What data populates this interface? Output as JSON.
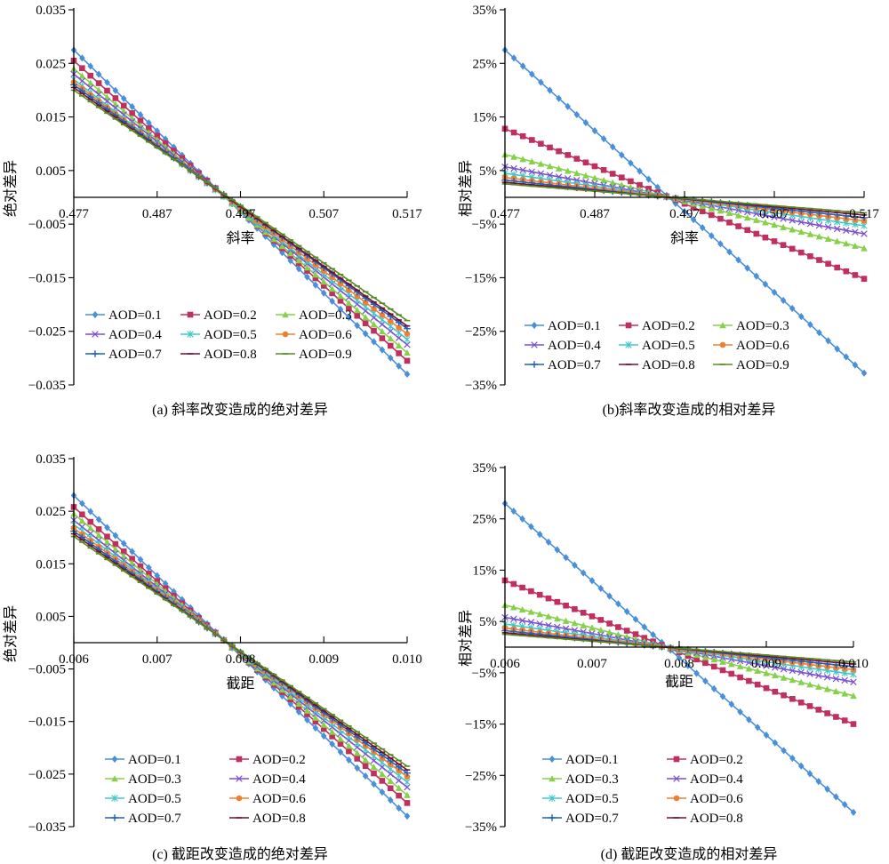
{
  "chart_data": [
    {
      "id": "a",
      "type": "line",
      "caption": "(a) 斜率改变造成的绝对差异",
      "xlabel": "斜率",
      "ylabel": "绝对差异",
      "xlim": [
        0.477,
        0.517
      ],
      "ylim": [
        -0.035,
        0.035
      ],
      "xticks": [
        "0.477",
        "0.487",
        "0.497",
        "0.507",
        "0.517"
      ],
      "yticks": [
        "0.035",
        "0.025",
        "0.015",
        "0.005",
        "−0.005",
        "−0.015",
        "−0.025",
        "−0.035"
      ],
      "grid": false,
      "legend_position": "bottom-left",
      "legend_columns": 3,
      "x_start": 0.477,
      "x_end": 0.517,
      "x_step": 0.001,
      "series": [
        {
          "name": "AOD=0.1",
          "color": "#4a8fd9",
          "marker": "diamond",
          "y_start": 0.0275,
          "y_end": -0.033
        },
        {
          "name": "AOD=0.2",
          "color": "#c0305e",
          "marker": "square",
          "y_start": 0.0255,
          "y_end": -0.0305
        },
        {
          "name": "AOD=0.3",
          "color": "#86d04a",
          "marker": "triangle",
          "y_start": 0.024,
          "y_end": -0.029
        },
        {
          "name": "AOD=0.4",
          "color": "#7a4fd0",
          "marker": "x",
          "y_start": 0.023,
          "y_end": -0.0275
        },
        {
          "name": "AOD=0.5",
          "color": "#40c8c8",
          "marker": "star",
          "y_start": 0.022,
          "y_end": -0.0265
        },
        {
          "name": "AOD=0.6",
          "color": "#f08030",
          "marker": "circle",
          "y_start": 0.0215,
          "y_end": -0.0255
        },
        {
          "name": "AOD=0.7",
          "color": "#2060b8",
          "marker": "plus",
          "y_start": 0.021,
          "y_end": -0.0245
        },
        {
          "name": "AOD=0.8",
          "color": "#701030",
          "marker": "dash",
          "y_start": 0.0205,
          "y_end": -0.024
        },
        {
          "name": "AOD=0.9",
          "color": "#5a8a20",
          "marker": "dash",
          "y_start": 0.02,
          "y_end": -0.023
        }
      ]
    },
    {
      "id": "b",
      "type": "line",
      "caption": "(b)斜率改变造成的相对差异",
      "xlabel": "斜率",
      "ylabel": "相对差异",
      "xlim": [
        0.477,
        0.517
      ],
      "ylim": [
        -35,
        35
      ],
      "y_unit": "%",
      "xticks": [
        "0.477",
        "0.487",
        "0.497",
        "0.507",
        "0.517"
      ],
      "yticks": [
        "35%",
        "25%",
        "15%",
        "5%",
        "−5%",
        "−15%",
        "−25%",
        "−35%"
      ],
      "grid": false,
      "legend_position": "bottom-left",
      "legend_columns": 3,
      "x_start": 0.477,
      "x_end": 0.517,
      "x_step": 0.001,
      "series": [
        {
          "name": "AOD=0.1",
          "color": "#4a8fd9",
          "marker": "diamond",
          "y_start": 27.5,
          "y_end": -32.8
        },
        {
          "name": "AOD=0.2",
          "color": "#c0305e",
          "marker": "square",
          "y_start": 12.8,
          "y_end": -15.2
        },
        {
          "name": "AOD=0.3",
          "color": "#86d04a",
          "marker": "triangle",
          "y_start": 8.0,
          "y_end": -9.5
        },
        {
          "name": "AOD=0.4",
          "color": "#7a4fd0",
          "marker": "x",
          "y_start": 5.7,
          "y_end": -6.8
        },
        {
          "name": "AOD=0.5",
          "color": "#40c8c8",
          "marker": "star",
          "y_start": 4.5,
          "y_end": -5.3
        },
        {
          "name": "AOD=0.6",
          "color": "#f08030",
          "marker": "circle",
          "y_start": 3.7,
          "y_end": -4.4
        },
        {
          "name": "AOD=0.7",
          "color": "#2060b8",
          "marker": "plus",
          "y_start": 3.2,
          "y_end": -3.8
        },
        {
          "name": "AOD=0.8",
          "color": "#701030",
          "marker": "dash",
          "y_start": 2.8,
          "y_end": -3.3
        },
        {
          "name": "AOD=0.9",
          "color": "#5a8a20",
          "marker": "dash",
          "y_start": 2.5,
          "y_end": -2.9
        }
      ]
    },
    {
      "id": "c",
      "type": "line",
      "caption": "(c) 截距改变造成的绝对差异",
      "xlabel": "截距",
      "ylabel": "绝对差异",
      "xlim": [
        0.006,
        0.01
      ],
      "ylim": [
        -0.035,
        0.035
      ],
      "xticks": [
        "0.006",
        "0.007",
        "0.008",
        "0.009",
        "0.010"
      ],
      "yticks": [
        "0.035",
        "0.025",
        "0.015",
        "0.005",
        "−0.005",
        "−0.015",
        "−0.025",
        "−0.035"
      ],
      "grid": false,
      "legend_position": "bottom-left",
      "legend_columns": 2,
      "x_start": 0.006,
      "x_end": 0.01,
      "x_step": 0.0001,
      "series": [
        {
          "name": "AOD=0.1",
          "color": "#4a8fd9",
          "marker": "diamond",
          "y_start": 0.028,
          "y_end": -0.033
        },
        {
          "name": "AOD=0.2",
          "color": "#c0305e",
          "marker": "square",
          "y_start": 0.0258,
          "y_end": -0.0305
        },
        {
          "name": "AOD=0.3",
          "color": "#86d04a",
          "marker": "triangle",
          "y_start": 0.0245,
          "y_end": -0.029
        },
        {
          "name": "AOD=0.4",
          "color": "#7a4fd0",
          "marker": "x",
          "y_start": 0.0233,
          "y_end": -0.0275
        },
        {
          "name": "AOD=0.5",
          "color": "#40c8c8",
          "marker": "star",
          "y_start": 0.0225,
          "y_end": -0.0265
        },
        {
          "name": "AOD=0.6",
          "color": "#f08030",
          "marker": "circle",
          "y_start": 0.0218,
          "y_end": -0.0255
        },
        {
          "name": "AOD=0.7",
          "color": "#2060b8",
          "marker": "plus",
          "y_start": 0.0212,
          "y_end": -0.0248
        },
        {
          "name": "AOD=0.8",
          "color": "#701030",
          "marker": "dash",
          "y_start": 0.0207,
          "y_end": -0.0242
        },
        {
          "name": "",
          "color": "#5a8a20",
          "marker": "dash",
          "y_start": 0.0202,
          "y_end": -0.0235
        }
      ]
    },
    {
      "id": "d",
      "type": "line",
      "caption": "(d) 截距改变造成的相对差异",
      "xlabel": "截距",
      "ylabel": "相对差异",
      "xlim": [
        0.006,
        0.01
      ],
      "ylim": [
        -35,
        35
      ],
      "y_unit": "%",
      "xticks": [
        "0.006",
        "0.007",
        "0.008",
        "0.009",
        "0.010"
      ],
      "yticks": [
        "35%",
        "25%",
        "15%",
        "5%",
        "−5%",
        "−15%",
        "−25%",
        "−35%"
      ],
      "grid": false,
      "legend_position": "bottom-left",
      "legend_columns": 2,
      "x_start": 0.006,
      "x_end": 0.01,
      "x_step": 0.0001,
      "series": [
        {
          "name": "AOD=0.1",
          "color": "#4a8fd9",
          "marker": "diamond",
          "y_start": 28.0,
          "y_end": -32.2
        },
        {
          "name": "AOD=0.2",
          "color": "#c0305e",
          "marker": "square",
          "y_start": 13.0,
          "y_end": -15.0
        },
        {
          "name": "AOD=0.3",
          "color": "#86d04a",
          "marker": "triangle",
          "y_start": 8.2,
          "y_end": -9.5
        },
        {
          "name": "AOD=0.4",
          "color": "#7a4fd0",
          "marker": "x",
          "y_start": 5.8,
          "y_end": -6.8
        },
        {
          "name": "AOD=0.5",
          "color": "#40c8c8",
          "marker": "star",
          "y_start": 4.5,
          "y_end": -5.3
        },
        {
          "name": "AOD=0.6",
          "color": "#f08030",
          "marker": "circle",
          "y_start": 3.7,
          "y_end": -4.4
        },
        {
          "name": "AOD=0.7",
          "color": "#2060b8",
          "marker": "plus",
          "y_start": 3.2,
          "y_end": -3.8
        },
        {
          "name": "AOD=0.8",
          "color": "#701030",
          "marker": "dash",
          "y_start": 2.8,
          "y_end": -3.3
        },
        {
          "name": "",
          "color": "#5a8a20",
          "marker": "dash",
          "y_start": 2.5,
          "y_end": -2.9
        }
      ]
    }
  ]
}
